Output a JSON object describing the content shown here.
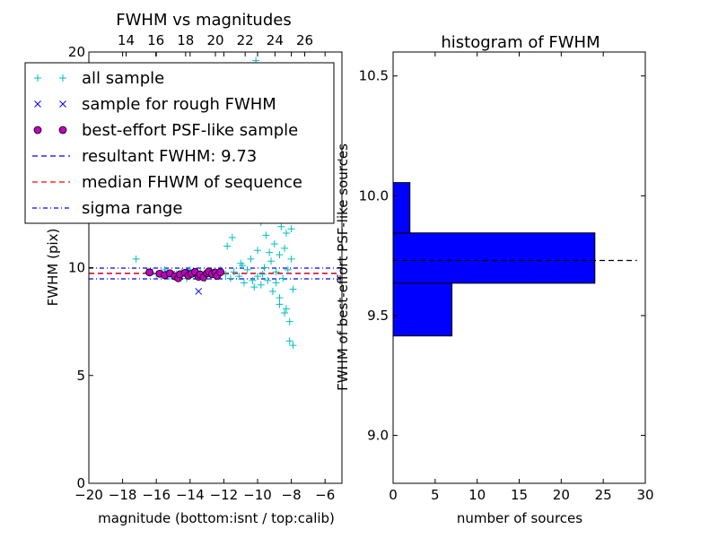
{
  "figure": {
    "left_panel": {
      "title": "FWHM vs magnitudes",
      "xlabel": "magnitude (bottom:isnt / top:calib)",
      "ylabel": "FWHM (pix)"
    },
    "right_panel": {
      "title": "histogram of FWHM",
      "xlabel": "number of sources",
      "ylabel": "FWHM of best-effort PSF-like sources"
    }
  },
  "chart_data": [
    {
      "type": "scatter",
      "title": "FWHM vs magnitudes",
      "xlabel": "magnitude (bottom:isnt / top:calib)",
      "ylabel": "FWHM (pix)",
      "xlim": [
        -20,
        -5
      ],
      "ylim": [
        0,
        20
      ],
      "x_ticks": [
        -20,
        -18,
        -16,
        -14,
        -12,
        -10,
        -8,
        -6
      ],
      "x_tick_labels": [
        "−20",
        "−18",
        "−16",
        "−14",
        "−12",
        "−10",
        "−8",
        "−6"
      ],
      "y_ticks": [
        0,
        5,
        10,
        15,
        20
      ],
      "y_tick_labels": [
        "0",
        "5",
        "10",
        "15",
        "20"
      ],
      "top_axis": {
        "ticks": [
          14,
          16,
          18,
          20,
          22,
          24,
          26
        ],
        "tick_labels": [
          "14",
          "16",
          "18",
          "20",
          "22",
          "24",
          "26"
        ],
        "xlim": [
          11.5,
          28.5
        ]
      },
      "legend": {
        "placement": "upper-left",
        "entries": [
          {
            "label": "all sample",
            "marker": "plus",
            "color": "#00BFBF"
          },
          {
            "label": "sample for rough FWHM",
            "marker": "x",
            "color": "#0000FF"
          },
          {
            "label": "best-effort PSF-like sample",
            "marker": "circle",
            "color": "#BF00BF"
          },
          {
            "label": "resultant FWHM: 9.73",
            "line": "dashed",
            "color": "#0000FF"
          },
          {
            "label": "median FHWM of sequence",
            "line": "dashed",
            "color": "#FF0000"
          },
          {
            "label": "sigma range",
            "line": "dashdot",
            "color": "#0000FF"
          }
        ]
      },
      "hlines": [
        {
          "y": 9.73,
          "style": "dashed",
          "color": "#0000FF"
        },
        {
          "y": 9.74,
          "style": "dashed",
          "color": "#FF0000"
        },
        {
          "y": 9.98,
          "style": "dashdot",
          "color": "#0000FF"
        },
        {
          "y": 9.48,
          "style": "dashdot",
          "color": "#0000FF"
        }
      ],
      "series": [
        {
          "name": "all sample",
          "marker": "plus",
          "color": "#00BFBF",
          "points": [
            [
              -17.2,
              10.4
            ],
            [
              -16.5,
              9.8
            ],
            [
              -16.0,
              9.7
            ],
            [
              -15.5,
              9.9
            ],
            [
              -15.2,
              9.6
            ],
            [
              -14.8,
              9.7
            ],
            [
              -14.5,
              9.8
            ],
            [
              -14.2,
              9.5
            ],
            [
              -14.0,
              9.9
            ],
            [
              -13.7,
              9.6
            ],
            [
              -13.4,
              9.8
            ],
            [
              -13.1,
              9.5
            ],
            [
              -12.8,
              9.7
            ],
            [
              -12.5,
              9.6
            ],
            [
              -12.2,
              9.9
            ],
            [
              -11.9,
              9.7
            ],
            [
              -11.6,
              9.5
            ],
            [
              -11.4,
              9.8
            ],
            [
              -11.1,
              9.6
            ],
            [
              -11.8,
              11.0
            ],
            [
              -11.5,
              11.4
            ],
            [
              -11.0,
              10.2
            ],
            [
              -10.8,
              9.3
            ],
            [
              -10.6,
              9.9
            ],
            [
              -10.4,
              10.4
            ],
            [
              -10.2,
              9.1
            ],
            [
              -10.0,
              10.8
            ],
            [
              -10.0,
              9.6
            ],
            [
              -9.8,
              12.1
            ],
            [
              -9.8,
              9.2
            ],
            [
              -9.6,
              10.0
            ],
            [
              -9.5,
              11.5
            ],
            [
              -9.4,
              9.4
            ],
            [
              -9.3,
              12.8
            ],
            [
              -9.2,
              10.3
            ],
            [
              -9.1,
              8.9
            ],
            [
              -9.0,
              11.1
            ],
            [
              -9.0,
              13.6
            ],
            [
              -8.9,
              9.8
            ],
            [
              -8.8,
              12.4
            ],
            [
              -8.8,
              14.2
            ],
            [
              -8.7,
              10.6
            ],
            [
              -8.7,
              8.6
            ],
            [
              -8.6,
              11.9
            ],
            [
              -8.6,
              13.3
            ],
            [
              -8.5,
              9.5
            ],
            [
              -8.5,
              12.7
            ],
            [
              -8.4,
              10.9
            ],
            [
              -8.4,
              14.8
            ],
            [
              -8.3,
              11.6
            ],
            [
              -8.3,
              8.1
            ],
            [
              -8.2,
              13.0
            ],
            [
              -8.2,
              9.9
            ],
            [
              -8.1,
              12.2
            ],
            [
              -8.1,
              7.5
            ],
            [
              -8.0,
              10.4
            ],
            [
              -8.0,
              11.8
            ],
            [
              -7.9,
              13.5
            ],
            [
              -7.9,
              9.0
            ],
            [
              -8.6,
              16.7
            ],
            [
              -9.1,
              15.6
            ],
            [
              -9.6,
              15.0
            ],
            [
              -8.3,
              18.2
            ],
            [
              -10.1,
              19.6
            ],
            [
              -9.0,
              18.9
            ],
            [
              -8.1,
              6.6
            ],
            [
              -7.9,
              6.4
            ],
            [
              -8.4,
              7.9
            ],
            [
              -8.7,
              8.3
            ],
            [
              -8.9,
              9.3
            ],
            [
              -9.3,
              10.7
            ],
            [
              -9.7,
              9.7
            ],
            [
              -10.3,
              9.4
            ],
            [
              -10.9,
              10.1
            ],
            [
              -8.2,
              14.3
            ],
            [
              -8.5,
              15.5
            ],
            [
              -9.2,
              14.6
            ],
            [
              -8.0,
              15.8
            ],
            [
              -8.8,
              17.1
            ],
            [
              -9.4,
              13.9
            ]
          ]
        },
        {
          "name": "sample for rough FWHM",
          "marker": "x",
          "color": "#0000FF",
          "points": [
            [
              -16.4,
              9.8
            ],
            [
              -15.6,
              9.7
            ],
            [
              -15.1,
              9.7
            ],
            [
              -14.6,
              9.6
            ],
            [
              -14.0,
              9.8
            ],
            [
              -13.6,
              9.6
            ],
            [
              -13.3,
              9.7
            ],
            [
              -12.8,
              9.8
            ],
            [
              -12.5,
              9.7
            ],
            [
              -13.5,
              8.9
            ]
          ]
        },
        {
          "name": "best-effort PSF-like sample",
          "marker": "circle",
          "color": "#BF00BF",
          "points": [
            [
              -16.4,
              9.78
            ],
            [
              -15.8,
              9.72
            ],
            [
              -15.5,
              9.65
            ],
            [
              -15.2,
              9.74
            ],
            [
              -14.9,
              9.6
            ],
            [
              -14.7,
              9.51
            ],
            [
              -14.6,
              9.69
            ],
            [
              -14.3,
              9.76
            ],
            [
              -14.1,
              9.63
            ],
            [
              -13.9,
              9.72
            ],
            [
              -13.7,
              9.8
            ],
            [
              -13.5,
              9.58
            ],
            [
              -13.4,
              9.68
            ],
            [
              -13.2,
              9.55
            ],
            [
              -13.0,
              9.74
            ],
            [
              -12.9,
              9.82
            ],
            [
              -12.7,
              9.7
            ],
            [
              -12.5,
              9.77
            ],
            [
              -12.4,
              9.62
            ],
            [
              -12.2,
              9.79
            ]
          ]
        }
      ]
    },
    {
      "type": "bar",
      "orientation": "horizontal",
      "title": "histogram of FWHM",
      "xlabel": "number of sources",
      "ylabel": "FWHM of best-effort PSF-like sources",
      "xlim": [
        0,
        30
      ],
      "ylim": [
        8.8,
        10.6
      ],
      "x_ticks": [
        0,
        5,
        10,
        15,
        20,
        25,
        30
      ],
      "x_tick_labels": [
        "0",
        "5",
        "10",
        "15",
        "20",
        "25",
        "30"
      ],
      "y_ticks": [
        9.0,
        9.5,
        10.0,
        10.5
      ],
      "y_tick_labels": [
        "9.0",
        "9.5",
        "10.0",
        "10.5"
      ],
      "bars": [
        {
          "y_from": 9.415,
          "y_to": 9.635,
          "count": 7
        },
        {
          "y_from": 9.635,
          "y_to": 9.845,
          "count": 24
        },
        {
          "y_from": 9.845,
          "y_to": 10.055,
          "count": 2
        }
      ],
      "bar_color": "#0000FF",
      "hlines": [
        {
          "y": 9.73,
          "x_from": 0,
          "x_to": 29,
          "style": "dashed",
          "color": "#000000"
        }
      ]
    }
  ]
}
